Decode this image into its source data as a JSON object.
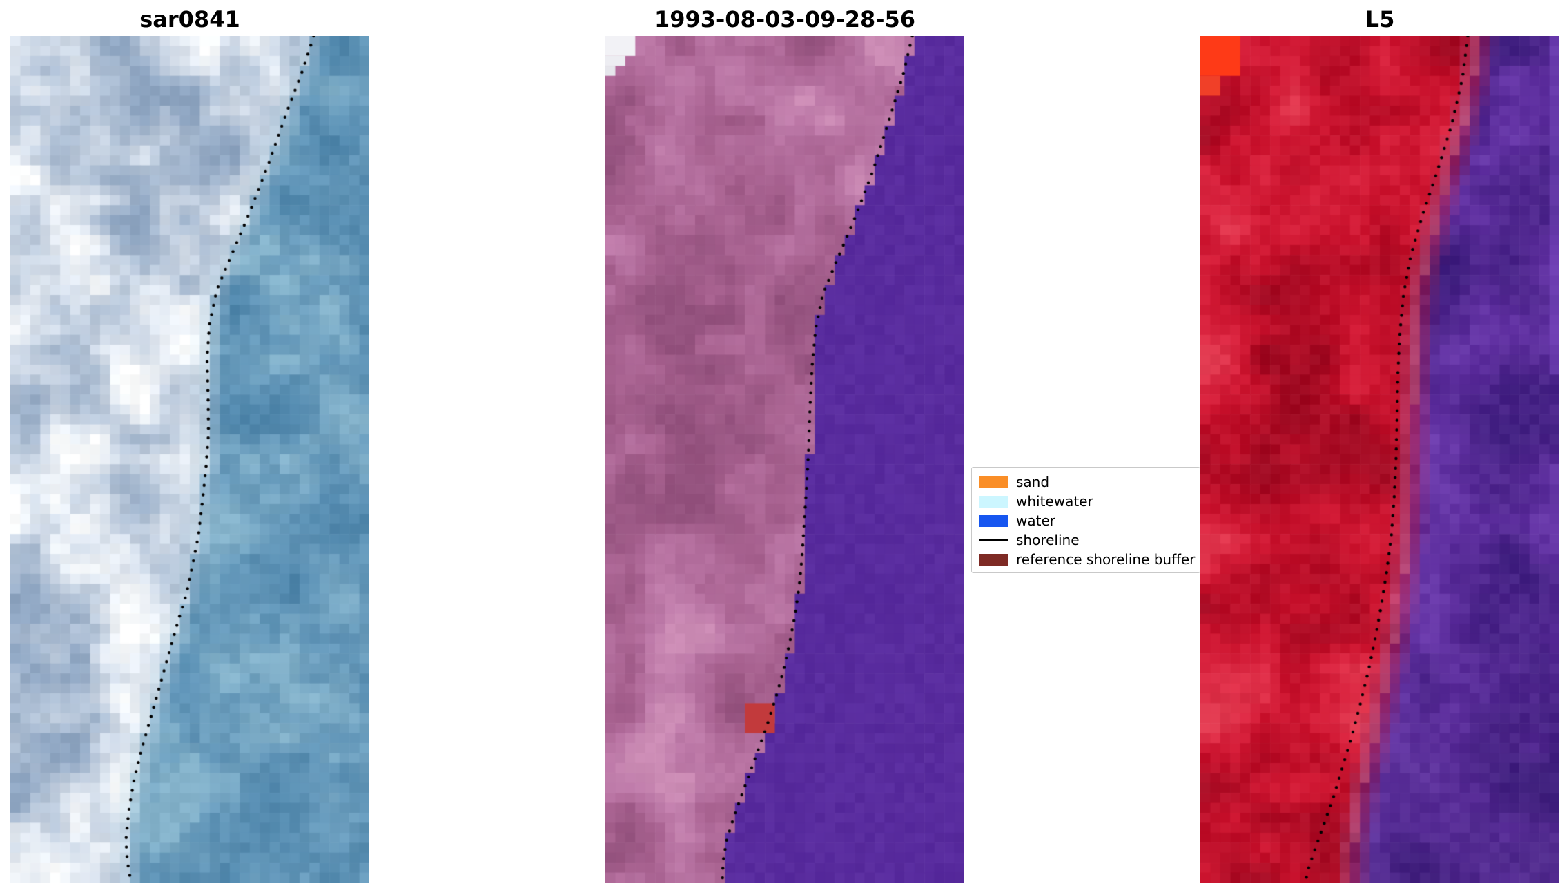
{
  "chart_data": {
    "type": "heatmap",
    "subtype": "satellite-shoreline-panels",
    "description": "Three satellite image panels with detected shoreline (dotted black) and classification legend",
    "shoreline_style": {
      "color": "#000000",
      "dot_radius": 2.2,
      "spacing": 13
    },
    "legend": {
      "items": [
        {
          "label": "sand",
          "color": "#fa8e27",
          "swatch": "patch"
        },
        {
          "label": "whitewater",
          "color": "#ccf6ff",
          "swatch": "patch"
        },
        {
          "label": "water",
          "color": "#1656f0",
          "swatch": "patch"
        },
        {
          "label": "shoreline",
          "color": "#000000",
          "swatch": "line"
        },
        {
          "label": "reference shoreline buffer",
          "color": "#7e2a24",
          "swatch": "patch"
        }
      ]
    },
    "panels": [
      {
        "title": "sar0841",
        "grid": [
          36,
          85
        ],
        "noise_scale": 0.17,
        "jitter": 9,
        "blend": 0.09,
        "land_texture": 1,
        "water_texture": 1,
        "land_ramp": [
          [
            0,
            "#8fa6c2"
          ],
          [
            0.3,
            "#aebfd4"
          ],
          [
            0.55,
            "#ccd7e5"
          ],
          [
            0.78,
            "#e8eef5"
          ],
          [
            1,
            "#fdfefe"
          ]
        ],
        "water_ramp": [
          [
            0,
            "#4f86ab"
          ],
          [
            0.5,
            "#6397b9"
          ],
          [
            1,
            "#85b3cb"
          ]
        ],
        "bands": [
          {
            "side": "land",
            "width": 0.09,
            "color": "#f2f7fa",
            "amount": 0.5
          },
          {
            "side": "water",
            "width": 0.05,
            "color": "#a3c8da",
            "amount": 0.25
          }
        ],
        "patches": [],
        "boundary": [
          [
            0.845,
            0
          ],
          [
            0.815,
            0.04
          ],
          [
            0.77,
            0.09
          ],
          [
            0.72,
            0.15
          ],
          [
            0.665,
            0.21
          ],
          [
            0.615,
            0.26
          ],
          [
            0.575,
            0.3
          ],
          [
            0.555,
            0.34
          ],
          [
            0.548,
            0.38
          ],
          [
            0.551,
            0.43
          ],
          [
            0.552,
            0.47
          ],
          [
            0.545,
            0.51
          ],
          [
            0.535,
            0.55
          ],
          [
            0.524,
            0.59
          ],
          [
            0.51,
            0.62
          ],
          [
            0.49,
            0.66
          ],
          [
            0.468,
            0.69
          ],
          [
            0.448,
            0.72
          ],
          [
            0.428,
            0.75
          ],
          [
            0.408,
            0.78
          ],
          [
            0.388,
            0.81
          ],
          [
            0.364,
            0.845
          ],
          [
            0.344,
            0.88
          ],
          [
            0.33,
            0.915
          ],
          [
            0.322,
            0.95
          ],
          [
            0.326,
            0.975
          ],
          [
            0.336,
            1
          ]
        ],
        "shoreline": [
          [
            0.845,
            0
          ],
          [
            0.815,
            0.04
          ],
          [
            0.77,
            0.09
          ],
          [
            0.72,
            0.15
          ],
          [
            0.665,
            0.21
          ],
          [
            0.615,
            0.26
          ],
          [
            0.575,
            0.3
          ],
          [
            0.555,
            0.34
          ],
          [
            0.548,
            0.38
          ],
          [
            0.551,
            0.43
          ],
          [
            0.552,
            0.47
          ],
          [
            0.545,
            0.51
          ],
          [
            0.535,
            0.55
          ],
          [
            0.524,
            0.59
          ],
          [
            0.51,
            0.62
          ],
          [
            0.49,
            0.66
          ],
          [
            0.468,
            0.69
          ],
          [
            0.448,
            0.72
          ],
          [
            0.428,
            0.75
          ],
          [
            0.408,
            0.78
          ],
          [
            0.388,
            0.81
          ],
          [
            0.364,
            0.845
          ],
          [
            0.344,
            0.88
          ],
          [
            0.33,
            0.915
          ],
          [
            0.322,
            0.95
          ],
          [
            0.326,
            0.975
          ],
          [
            0.336,
            1
          ]
        ]
      },
      {
        "title": "1993-08-03-09-28-56",
        "grid": [
          36,
          85
        ],
        "noise_scale": 0.15,
        "jitter": 5,
        "blend": 0,
        "land_texture": 1,
        "water_texture": 0.12,
        "land_ramp": [
          [
            0,
            "#94527e"
          ],
          [
            0.35,
            "#a7618f"
          ],
          [
            0.6,
            "#b46f9e"
          ],
          [
            0.85,
            "#c07dab"
          ],
          [
            1,
            "#cb8bb4"
          ]
        ],
        "water_ramp": [
          [
            0,
            "#55289b"
          ],
          [
            1,
            "#5c2fa1"
          ]
        ],
        "bands": [],
        "patches": [
          {
            "x": 0,
            "y": 0,
            "w": 0.085,
            "h": 0.018,
            "color": "#f2f2f6"
          },
          {
            "x": 0,
            "y": 0.018,
            "w": 0.056,
            "h": 0.016,
            "color": "#ededf2"
          },
          {
            "x": 0,
            "y": 0.034,
            "w": 0.028,
            "h": 0.014,
            "color": "#e6e6ec"
          },
          {
            "x": 0.39,
            "y": 0.784,
            "w": 0.07,
            "h": 0.036,
            "color": "#c23a3c"
          }
        ],
        "boundary": [
          [
            0.86,
            0
          ],
          [
            0.835,
            0.045
          ],
          [
            0.795,
            0.1
          ],
          [
            0.75,
            0.16
          ],
          [
            0.7,
            0.215
          ],
          [
            0.65,
            0.265
          ],
          [
            0.61,
            0.305
          ],
          [
            0.59,
            0.345
          ],
          [
            0.58,
            0.39
          ],
          [
            0.574,
            0.44
          ],
          [
            0.57,
            0.49
          ],
          [
            0.564,
            0.535
          ],
          [
            0.558,
            0.575
          ],
          [
            0.552,
            0.615
          ],
          [
            0.544,
            0.65
          ],
          [
            0.532,
            0.685
          ],
          [
            0.516,
            0.72
          ],
          [
            0.5,
            0.75
          ],
          [
            0.48,
            0.78
          ],
          [
            0.454,
            0.815
          ],
          [
            0.424,
            0.85
          ],
          [
            0.394,
            0.885
          ],
          [
            0.364,
            0.92
          ],
          [
            0.342,
            0.95
          ],
          [
            0.332,
            0.975
          ],
          [
            0.33,
            1
          ]
        ],
        "shoreline": [
          [
            0.855,
            0
          ],
          [
            0.83,
            0.045
          ],
          [
            0.79,
            0.1
          ],
          [
            0.745,
            0.16
          ],
          [
            0.695,
            0.215
          ],
          [
            0.645,
            0.265
          ],
          [
            0.606,
            0.305
          ],
          [
            0.586,
            0.345
          ],
          [
            0.576,
            0.39
          ],
          [
            0.57,
            0.44
          ],
          [
            0.566,
            0.49
          ],
          [
            0.56,
            0.535
          ],
          [
            0.554,
            0.575
          ],
          [
            0.548,
            0.615
          ],
          [
            0.54,
            0.65
          ],
          [
            0.528,
            0.685
          ],
          [
            0.512,
            0.72
          ],
          [
            0.496,
            0.75
          ],
          [
            0.476,
            0.78
          ],
          [
            0.45,
            0.815
          ],
          [
            0.42,
            0.85
          ],
          [
            0.39,
            0.885
          ],
          [
            0.36,
            0.92
          ],
          [
            0.338,
            0.95
          ],
          [
            0.328,
            0.975
          ],
          [
            0.326,
            1
          ]
        ]
      },
      {
        "title": "L5",
        "grid": [
          36,
          85
        ],
        "noise_scale": 0.12,
        "jitter": 8,
        "blend": 0.1,
        "land_texture": 1,
        "water_texture": 1,
        "land_ramp": [
          [
            0,
            "#a00a22"
          ],
          [
            0.3,
            "#ba0e28"
          ],
          [
            0.55,
            "#cd1530"
          ],
          [
            0.8,
            "#da2540"
          ],
          [
            1,
            "#e13a50"
          ]
        ],
        "water_ramp": [
          [
            0,
            "#401f80"
          ],
          [
            0.4,
            "#50278f"
          ],
          [
            0.7,
            "#5e2f9f"
          ],
          [
            1,
            "#6b3bac"
          ]
        ],
        "water_bottom_dark": {
          "start": 0.72,
          "color": "#2a1560",
          "max": 0.5
        },
        "bands": [
          {
            "side": "land",
            "width": 0.05,
            "color": "#e0818f",
            "amount": 0.38
          }
        ],
        "patches": [
          {
            "x": 0,
            "y": 0,
            "w": 0.1,
            "h": 0.052,
            "color": "#fe3a17"
          },
          {
            "x": 0,
            "y": 0.052,
            "w": 0.05,
            "h": 0.02,
            "color": "#f04028"
          },
          {
            "x": 0.972,
            "y": 0,
            "w": 0.028,
            "h": 0.4,
            "color": "rgba(124,78,198,0.45)"
          }
        ],
        "boundary": [
          [
            0.78,
            0
          ],
          [
            0.765,
            0.05
          ],
          [
            0.735,
            0.105
          ],
          [
            0.7,
            0.16
          ],
          [
            0.665,
            0.21
          ],
          [
            0.636,
            0.26
          ],
          [
            0.616,
            0.305
          ],
          [
            0.606,
            0.35
          ],
          [
            0.6,
            0.4
          ],
          [
            0.596,
            0.45
          ],
          [
            0.592,
            0.5
          ],
          [
            0.588,
            0.545
          ],
          [
            0.582,
            0.59
          ],
          [
            0.572,
            0.63
          ],
          [
            0.56,
            0.67
          ],
          [
            0.546,
            0.71
          ],
          [
            0.528,
            0.75
          ],
          [
            0.51,
            0.79
          ],
          [
            0.49,
            0.83
          ],
          [
            0.47,
            0.865
          ],
          [
            0.452,
            0.9
          ],
          [
            0.44,
            0.93
          ],
          [
            0.43,
            0.96
          ],
          [
            0.425,
            1
          ]
        ],
        "shoreline": [
          [
            0.745,
            0
          ],
          [
            0.73,
            0.05
          ],
          [
            0.7,
            0.105
          ],
          [
            0.66,
            0.16
          ],
          [
            0.62,
            0.21
          ],
          [
            0.586,
            0.26
          ],
          [
            0.566,
            0.305
          ],
          [
            0.556,
            0.35
          ],
          [
            0.55,
            0.4
          ],
          [
            0.548,
            0.45
          ],
          [
            0.545,
            0.5
          ],
          [
            0.54,
            0.545
          ],
          [
            0.532,
            0.59
          ],
          [
            0.52,
            0.63
          ],
          [
            0.505,
            0.67
          ],
          [
            0.488,
            0.71
          ],
          [
            0.468,
            0.75
          ],
          [
            0.445,
            0.79
          ],
          [
            0.42,
            0.83
          ],
          [
            0.395,
            0.865
          ],
          [
            0.37,
            0.9
          ],
          [
            0.345,
            0.93
          ],
          [
            0.32,
            0.96
          ],
          [
            0.3,
            0.985
          ],
          [
            0.292,
            1
          ]
        ]
      }
    ]
  }
}
